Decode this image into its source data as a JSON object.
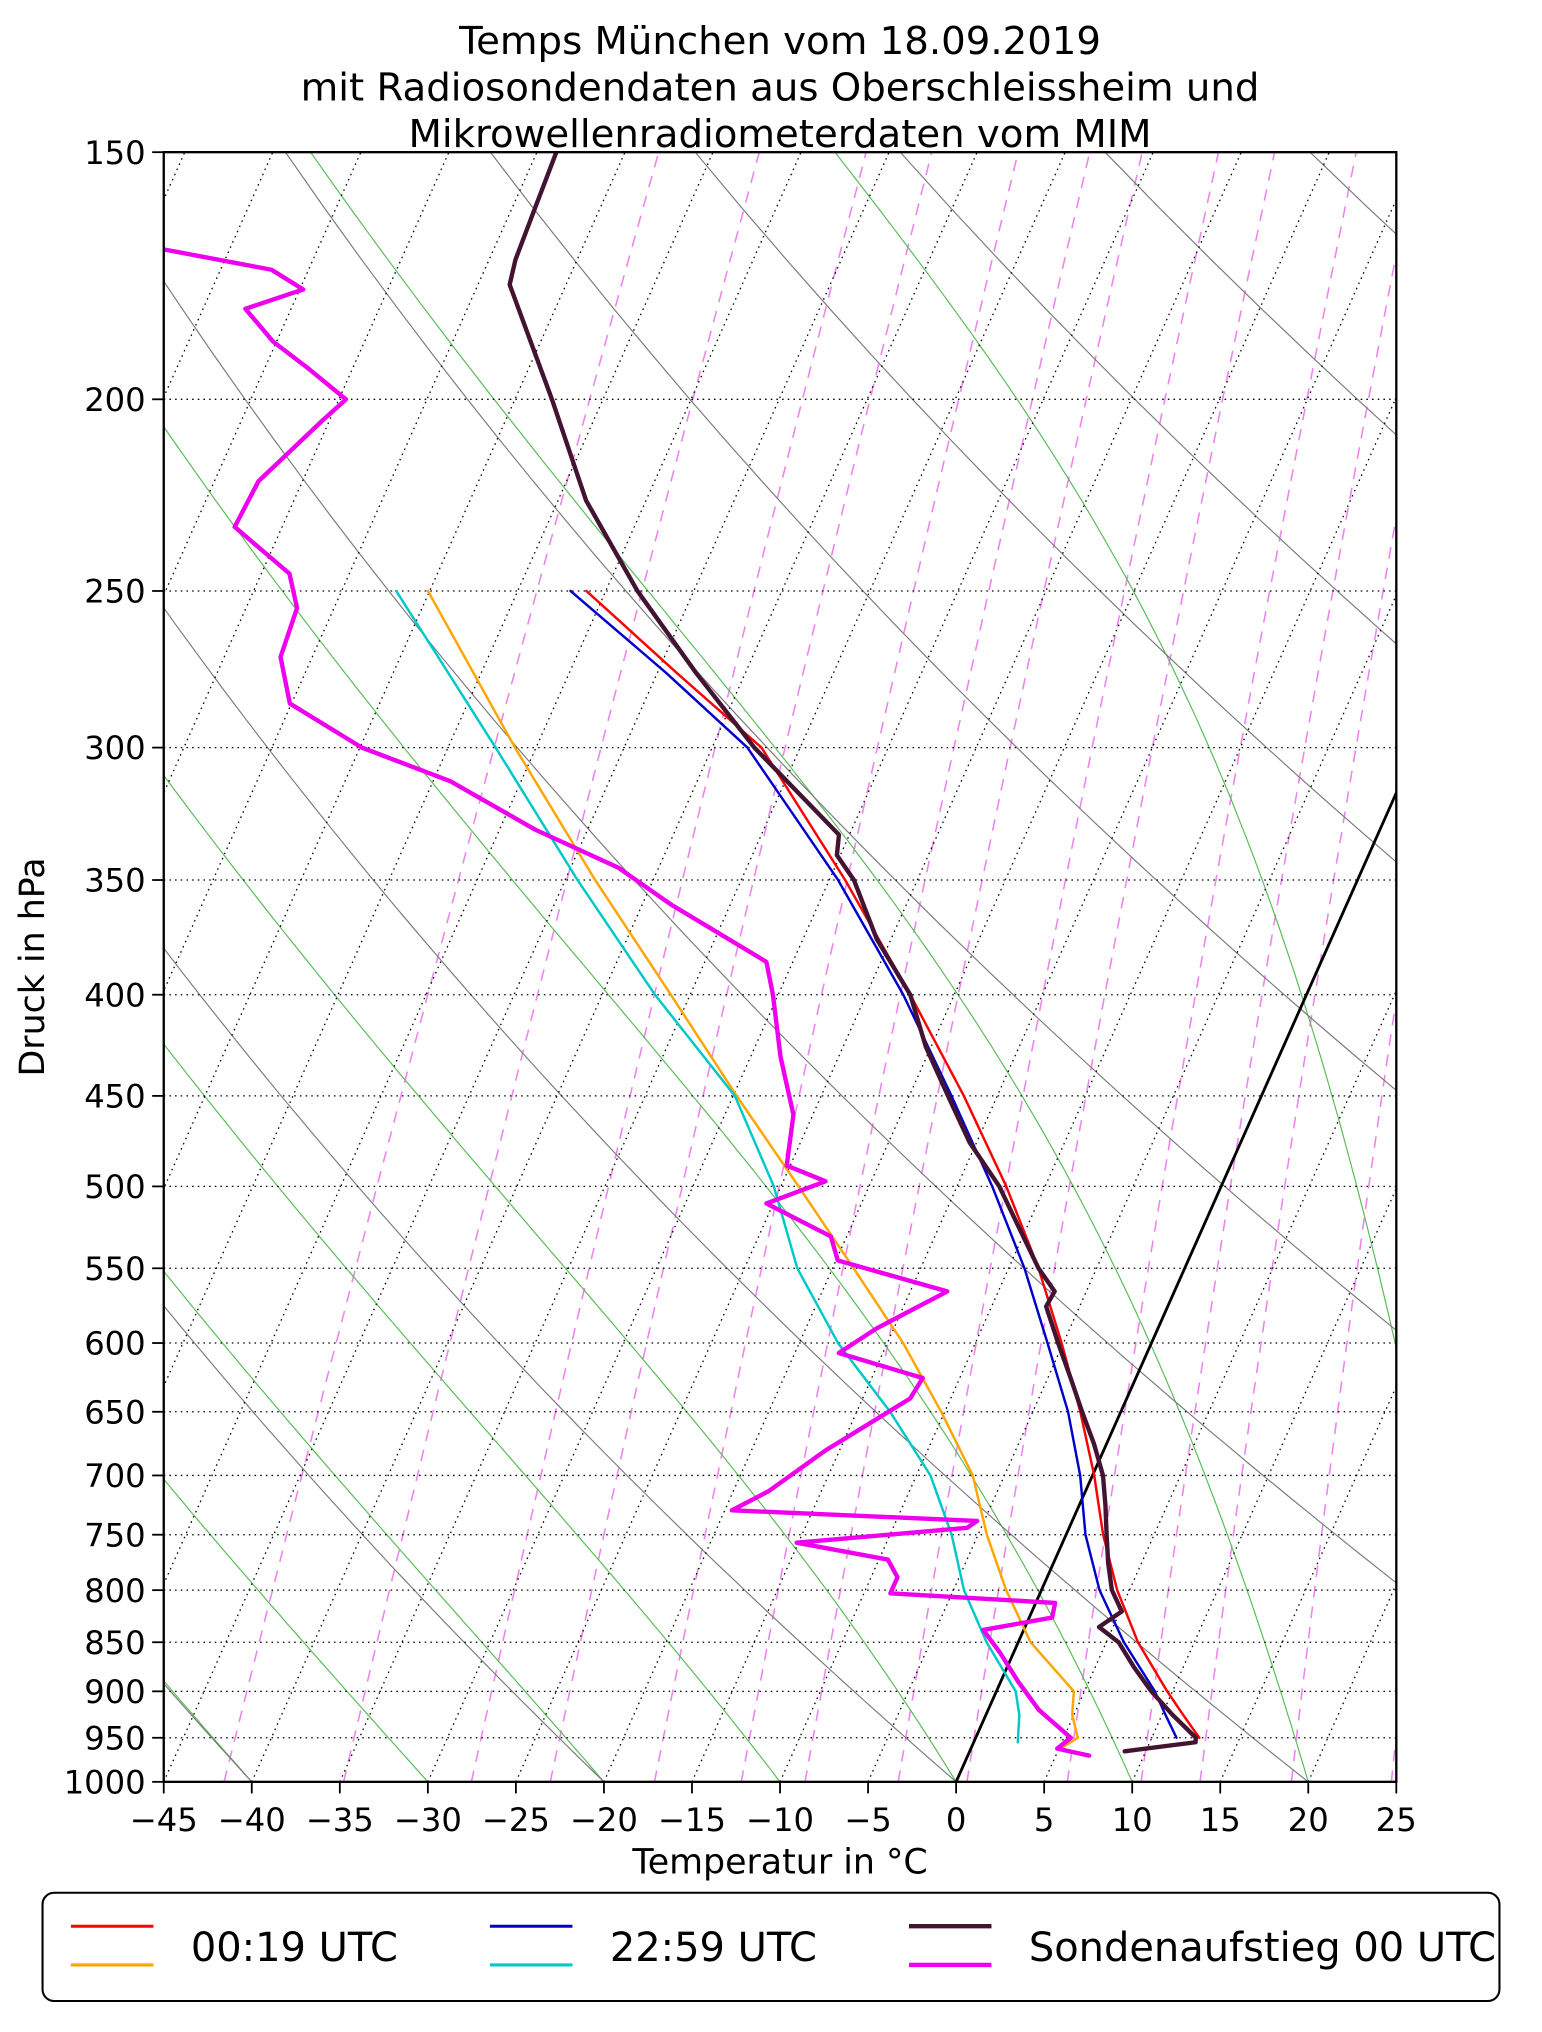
{
  "title": {
    "line1": "Temps München vom 18.09.2019",
    "line2": "mit Radiosondendaten aus Oberschleissheim und",
    "line3": "Mikrowellenradiometerdaten vom MIM"
  },
  "legend": {
    "items": [
      {
        "label": "00:19 UTC",
        "colors": [
          "#ff0000",
          "#ffa500"
        ]
      },
      {
        "label": "22:59 UTC",
        "colors": [
          "#0000cc",
          "#00c8c8"
        ]
      },
      {
        "label": "Sondenaufstieg 00 UTC",
        "colors": [
          "#431432",
          "#ee00ee"
        ]
      }
    ]
  },
  "colors": {
    "frame": "#000000",
    "isotherm": "#000000",
    "zero_isotherm": "#000000",
    "dry_adiabat": "#7a7a7a",
    "moist_adiabat": "#55bb55",
    "mixing_ratio": "#ee82ee"
  },
  "chart_data": {
    "type": "line",
    "chart_kind": "skew-T log-p sounding (Temp)",
    "title": "Temps München vom 18.09.2019 mit Radiosondendaten aus Oberschleissheim und Mikrowellenradiometerdaten vom MIM",
    "x_axis": {
      "label": "Temperatur in °C",
      "range": [
        -45,
        25
      ],
      "ticks": [
        -45,
        -40,
        -35,
        -30,
        -25,
        -20,
        -15,
        -10,
        -5,
        0,
        5,
        10,
        15,
        20,
        25
      ]
    },
    "y_axis": {
      "label": "Druck in hPa",
      "scale": "log",
      "range": [
        1000,
        150
      ],
      "ticks": [
        150,
        200,
        250,
        300,
        350,
        400,
        450,
        500,
        550,
        600,
        650,
        700,
        750,
        800,
        850,
        900,
        950,
        1000
      ]
    },
    "skew_c_per_decade": 50,
    "reference_lines": {
      "isotherm_step_c": 5,
      "isotherm_range_c": [
        -90,
        25
      ],
      "zero_isotherm_c": 0,
      "dry_adiabats_theta_c": [
        -40,
        -20,
        0,
        20,
        40,
        60,
        80,
        100,
        120,
        140,
        160
      ],
      "moist_adiabats_thetaw_c": [
        -40,
        -30,
        -20,
        -10,
        0,
        10,
        20,
        30,
        40
      ],
      "mixing_ratio_g_per_kg": [
        0.1,
        0.2,
        0.4,
        0.6,
        1,
        1.5,
        2,
        3,
        4,
        6,
        8,
        10,
        14,
        20
      ]
    },
    "series": [
      {
        "id": "radiometer-0019-dewpoint",
        "name": "00:19 UTC Taupunkt",
        "color": "#ffa500",
        "line_width": 1.9,
        "points": [
          [
            960,
            5.2
          ],
          [
            950,
            5.8
          ],
          [
            925,
            4.9
          ],
          [
            900,
            4.4
          ],
          [
            850,
            0.7
          ],
          [
            800,
            -2.0
          ],
          [
            750,
            -4.5
          ],
          [
            700,
            -6.8
          ],
          [
            650,
            -10.2
          ],
          [
            600,
            -14.1
          ],
          [
            550,
            -18.8
          ],
          [
            500,
            -24.0
          ],
          [
            450,
            -29.8
          ],
          [
            400,
            -36.1
          ],
          [
            350,
            -43.3
          ],
          [
            300,
            -51.2
          ],
          [
            250,
            -60.1
          ]
        ]
      },
      {
        "id": "radiometer-0019-temperature",
        "name": "00:19 UTC Temperatur",
        "color": "#ff0000",
        "line_width": 1.9,
        "points": [
          [
            950,
            12.7
          ],
          [
            925,
            11.2
          ],
          [
            900,
            9.7
          ],
          [
            850,
            6.8
          ],
          [
            800,
            4.3
          ],
          [
            750,
            2.1
          ],
          [
            700,
            0.1
          ],
          [
            650,
            -2.3
          ],
          [
            600,
            -5.1
          ],
          [
            550,
            -8.3
          ],
          [
            500,
            -12.2
          ],
          [
            450,
            -16.9
          ],
          [
            400,
            -22.5
          ],
          [
            350,
            -29.1
          ],
          [
            300,
            -37.2
          ],
          [
            275,
            -43.9
          ],
          [
            250,
            -51.1
          ]
        ]
      },
      {
        "id": "radiometer-2259-dewpoint",
        "name": "22:59 UTC Taupunkt",
        "color": "#00c8c8",
        "line_width": 1.9,
        "points": [
          [
            955,
            2.5
          ],
          [
            925,
            1.9
          ],
          [
            900,
            1.1
          ],
          [
            850,
            -1.8
          ],
          [
            800,
            -4.4
          ],
          [
            750,
            -6.5
          ],
          [
            700,
            -9.2
          ],
          [
            650,
            -13.1
          ],
          [
            600,
            -17.8
          ],
          [
            550,
            -22.0
          ],
          [
            500,
            -25.4
          ],
          [
            450,
            -29.9
          ],
          [
            400,
            -37.0
          ],
          [
            350,
            -44.3
          ],
          [
            300,
            -52.3
          ],
          [
            250,
            -61.9
          ]
        ]
      },
      {
        "id": "radiometer-2259-temperature",
        "name": "22:59 UTC Temperatur",
        "color": "#0000cc",
        "line_width": 1.9,
        "points": [
          [
            950,
            11.4
          ],
          [
            925,
            10.2
          ],
          [
            900,
            9.0
          ],
          [
            850,
            6.0
          ],
          [
            800,
            3.3
          ],
          [
            750,
            1.1
          ],
          [
            700,
            -0.7
          ],
          [
            650,
            -3.0
          ],
          [
            600,
            -5.9
          ],
          [
            550,
            -9.1
          ],
          [
            500,
            -13.0
          ],
          [
            450,
            -17.6
          ],
          [
            400,
            -22.9
          ],
          [
            350,
            -29.5
          ],
          [
            300,
            -38.0
          ],
          [
            275,
            -44.5
          ],
          [
            250,
            -52.0
          ]
        ]
      },
      {
        "id": "sonde-00-dewpoint",
        "name": "Sondenaufstieg 00 UTC Taupunkt",
        "color": "#ee00ee",
        "line_width": 3.4,
        "points": [
          [
            970,
            6.9
          ],
          [
            962,
            4.9
          ],
          [
            950,
            5.4
          ],
          [
            920,
            2.9
          ],
          [
            890,
            1.0
          ],
          [
            860,
            -0.8
          ],
          [
            838,
            -2.3
          ],
          [
            826,
            1.3
          ],
          [
            812,
            1.1
          ],
          [
            803,
            -8.5
          ],
          [
            788,
            -8.5
          ],
          [
            772,
            -9.5
          ],
          [
            757,
            -15.1
          ],
          [
            744,
            -5.8
          ],
          [
            738,
            -5.4
          ],
          [
            729,
            -19.6
          ],
          [
            713,
            -18.0
          ],
          [
            680,
            -15.8
          ],
          [
            640,
            -12.3
          ],
          [
            625,
            -12.1
          ],
          [
            607,
            -17.5
          ],
          [
            590,
            -16.0
          ],
          [
            565,
            -12.9
          ],
          [
            545,
            -19.9
          ],
          [
            530,
            -20.9
          ],
          [
            510,
            -25.4
          ],
          [
            497,
            -22.6
          ],
          [
            488,
            -25.2
          ],
          [
            460,
            -26.1
          ],
          [
            430,
            -28.3
          ],
          [
            400,
            -30.3
          ],
          [
            385,
            -31.5
          ],
          [
            360,
            -38.4
          ],
          [
            345,
            -42.3
          ],
          [
            330,
            -48.0
          ],
          [
            312,
            -54.0
          ],
          [
            300,
            -59.9
          ],
          [
            285,
            -65.1
          ],
          [
            270,
            -66.8
          ],
          [
            255,
            -67.1
          ],
          [
            245,
            -68.4
          ],
          [
            232,
            -72.7
          ],
          [
            220,
            -72.5
          ],
          [
            205,
            -70.4
          ],
          [
            200,
            -69.6
          ],
          [
            193,
            -72.5
          ],
          [
            187,
            -75.2
          ],
          [
            180,
            -77.6
          ],
          [
            176,
            -74.8
          ],
          [
            172,
            -77.1
          ],
          [
            168,
            -83.7
          ]
        ]
      },
      {
        "id": "sonde-00-temperature",
        "name": "Sondenaufstieg 00 UTC Temperatur",
        "color": "#431432",
        "line_width": 3.4,
        "points": [
          [
            965,
            8.8
          ],
          [
            955,
            12.6
          ],
          [
            950,
            12.5
          ],
          [
            925,
            10.6
          ],
          [
            900,
            8.8
          ],
          [
            875,
            7.2
          ],
          [
            850,
            5.7
          ],
          [
            835,
            4.2
          ],
          [
            820,
            5.1
          ],
          [
            800,
            4.0
          ],
          [
            775,
            3.1
          ],
          [
            750,
            2.3
          ],
          [
            725,
            1.5
          ],
          [
            700,
            0.6
          ],
          [
            675,
            -0.7
          ],
          [
            650,
            -2.2
          ],
          [
            625,
            -3.7
          ],
          [
            600,
            -5.3
          ],
          [
            575,
            -6.9
          ],
          [
            565,
            -6.8
          ],
          [
            550,
            -8.3
          ],
          [
            525,
            -10.4
          ],
          [
            500,
            -12.6
          ],
          [
            475,
            -15.4
          ],
          [
            450,
            -17.8
          ],
          [
            425,
            -20.3
          ],
          [
            400,
            -22.5
          ],
          [
            375,
            -25.8
          ],
          [
            350,
            -28.6
          ],
          [
            340,
            -30.2
          ],
          [
            332,
            -30.6
          ],
          [
            300,
            -37.6
          ],
          [
            275,
            -42.8
          ],
          [
            250,
            -48.2
          ],
          [
            225,
            -53.4
          ],
          [
            200,
            -57.9
          ],
          [
            185,
            -61.0
          ],
          [
            175,
            -63.2
          ],
          [
            170,
            -63.5
          ],
          [
            160,
            -63.7
          ],
          [
            150,
            -63.9
          ]
        ]
      }
    ]
  }
}
